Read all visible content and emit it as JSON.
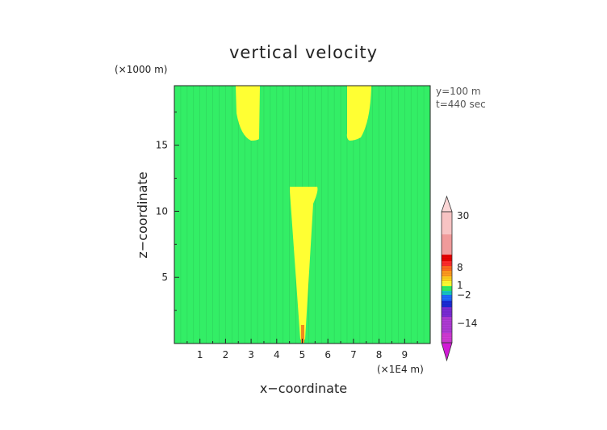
{
  "chart_data": {
    "type": "heatmap",
    "title": "vertical velocity",
    "xlabel": "x−coordinate",
    "ylabel": "z−coordinate",
    "x_unit": "(×1E4 m)",
    "y_unit": "(×1000 m)",
    "xlim": [
      0,
      10
    ],
    "ylim": [
      0,
      19.5
    ],
    "x_ticks": [
      "1",
      "2",
      "3",
      "4",
      "5",
      "6",
      "7",
      "8",
      "9"
    ],
    "y_ticks": [
      "5",
      "10",
      "15"
    ],
    "annotations": [
      "y=100 m",
      "t=440 sec"
    ],
    "colorbar_labels": [
      "30",
      "8",
      "1",
      "−2",
      "−14"
    ],
    "background_color": "#33ee66",
    "feature_color": "#ffff33",
    "regions": [
      {
        "name": "upper-left-plume",
        "x": [
          2.4,
          3.3
        ],
        "z": [
          15.8,
          19.5
        ]
      },
      {
        "name": "upper-right-plume",
        "x": [
          6.8,
          7.6
        ],
        "z": [
          15.8,
          19.5
        ]
      },
      {
        "name": "central-column",
        "x": [
          4.6,
          5.6
        ],
        "z": [
          0,
          12.2
        ]
      }
    ]
  }
}
